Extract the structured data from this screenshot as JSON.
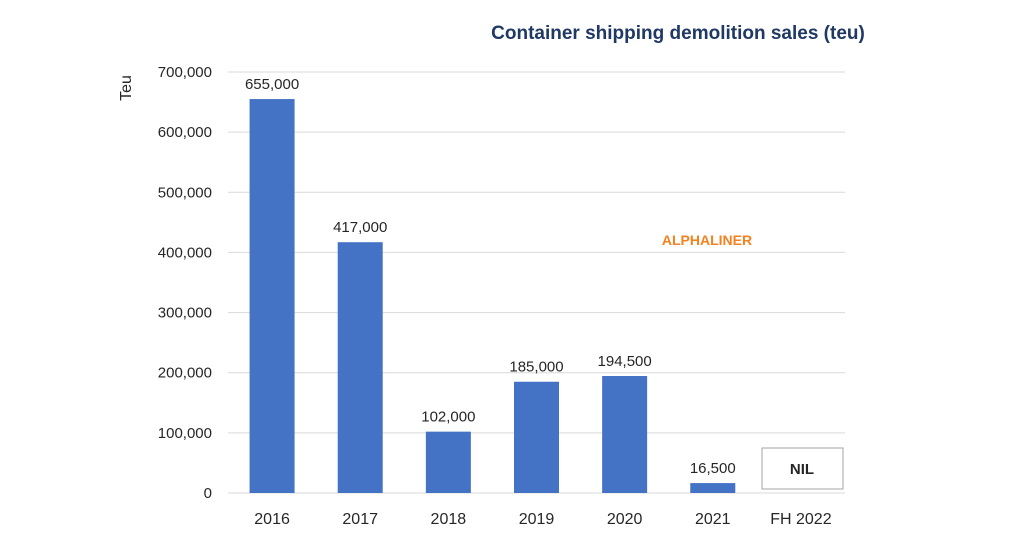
{
  "chart_data": {
    "type": "bar",
    "title": "Container shipping demolition sales (teu)",
    "ylabel": "Teu",
    "xlabel": "",
    "ylim": [
      0,
      700000
    ],
    "yticks": [
      0,
      100000,
      200000,
      300000,
      400000,
      500000,
      600000,
      700000
    ],
    "ytick_labels": [
      "0",
      "100,000",
      "200,000",
      "300,000",
      "400,000",
      "500,000",
      "600,000",
      "700,000"
    ],
    "grid": true,
    "bar_color": "#4472c4",
    "categories": [
      "2016",
      "2017",
      "2018",
      "2019",
      "2020",
      "2021",
      "FH 2022"
    ],
    "values": [
      655000,
      417000,
      102000,
      185000,
      194500,
      16500,
      0
    ],
    "data_labels": [
      "655,000",
      "417,000",
      "102,000",
      "185,000",
      "194,500",
      "16,500",
      ""
    ],
    "annotations": {
      "nil_label": "NIL",
      "watermark": "ALPHALINER",
      "watermark_color": "#f5821f"
    }
  }
}
